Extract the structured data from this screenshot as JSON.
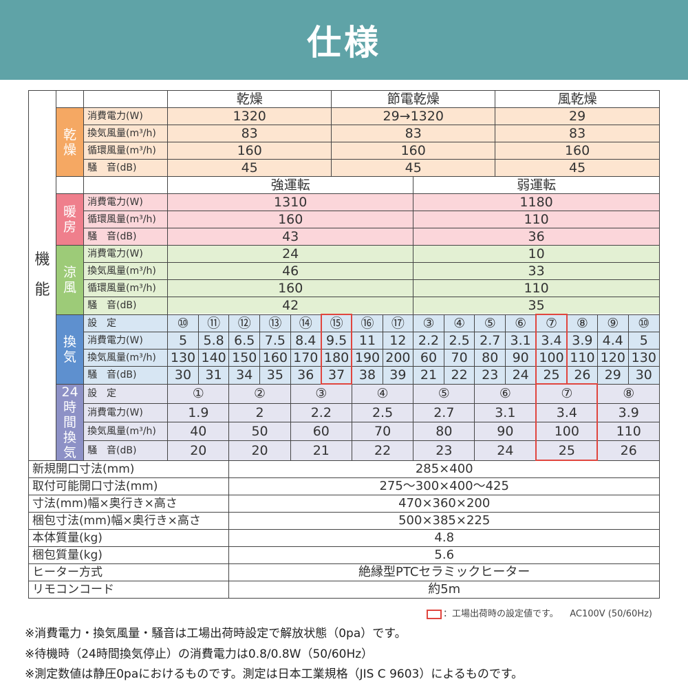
{
  "header": {
    "title": "仕様"
  },
  "table": {
    "function_label": "機能",
    "drying": {
      "category": "乾燥",
      "headers": [
        "乾燥",
        "節電乾燥",
        "風乾燥"
      ],
      "rows": [
        {
          "label": "消費電力(W)",
          "values": [
            "1320",
            "29→1320",
            "29"
          ]
        },
        {
          "label": "換気風量(m³/h)",
          "values": [
            "83",
            "83",
            "83"
          ]
        },
        {
          "label": "循環風量(m³/h)",
          "values": [
            "160",
            "160",
            "160"
          ]
        },
        {
          "label": "騒　音(dB)",
          "values": [
            "45",
            "45",
            "45"
          ]
        }
      ]
    },
    "mode_headers": [
      "強運転",
      "弱運転"
    ],
    "heating": {
      "category": "暖房",
      "rows": [
        {
          "label": "消費電力(W)",
          "values": [
            "1310",
            "1180"
          ]
        },
        {
          "label": "循環風量(m³/h)",
          "values": [
            "160",
            "110"
          ]
        },
        {
          "label": "騒　音(dB)",
          "values": [
            "43",
            "36"
          ]
        }
      ]
    },
    "cooling": {
      "category": "涼風",
      "rows": [
        {
          "label": "消費電力(W)",
          "values": [
            "24",
            "10"
          ]
        },
        {
          "label": "換気風量(m³/h)",
          "values": [
            "46",
            "33"
          ]
        },
        {
          "label": "循環風量(m³/h)",
          "values": [
            "160",
            "110"
          ]
        },
        {
          "label": "騒　音(dB)",
          "values": [
            "42",
            "35"
          ]
        }
      ]
    },
    "ventilation": {
      "category": "換気",
      "highlight_columns": [
        5,
        12
      ],
      "rows": [
        {
          "label": "設　定",
          "values": [
            "⑩",
            "⑪",
            "⑫",
            "⑬",
            "⑭",
            "⑮",
            "⑯",
            "⑰",
            "③",
            "④",
            "⑤",
            "⑥",
            "⑦",
            "⑧",
            "⑨",
            "⑩"
          ]
        },
        {
          "label": "消費電力(W)",
          "values": [
            "5",
            "5.8",
            "6.5",
            "7.5",
            "8.4",
            "9.5",
            "11",
            "12",
            "2.2",
            "2.5",
            "2.7",
            "3.1",
            "3.4",
            "3.9",
            "4.4",
            "5"
          ]
        },
        {
          "label": "換気風量(m³/h)",
          "values": [
            "130",
            "140",
            "150",
            "160",
            "170",
            "180",
            "190",
            "200",
            "60",
            "70",
            "80",
            "90",
            "100",
            "110",
            "120",
            "130"
          ]
        },
        {
          "label": "騒　音(dB)",
          "values": [
            "30",
            "31",
            "34",
            "35",
            "36",
            "37",
            "38",
            "39",
            "21",
            "22",
            "23",
            "24",
            "25",
            "26",
            "29",
            "30"
          ]
        }
      ]
    },
    "ventilation_24h": {
      "category": "24時間換気",
      "highlight_columns": [
        6
      ],
      "rows": [
        {
          "label": "設　定",
          "values": [
            "①",
            "②",
            "③",
            "④",
            "⑤",
            "⑥",
            "⑦",
            "⑧"
          ]
        },
        {
          "label": "消費電力(W)",
          "values": [
            "1.9",
            "2",
            "2.2",
            "2.5",
            "2.7",
            "3.1",
            "3.4",
            "3.9"
          ]
        },
        {
          "label": "換気風量(m³/h)",
          "values": [
            "40",
            "50",
            "60",
            "70",
            "80",
            "90",
            "100",
            "110"
          ]
        },
        {
          "label": "騒　音(dB)",
          "values": [
            "20",
            "20",
            "21",
            "22",
            "23",
            "24",
            "25",
            "26"
          ]
        }
      ]
    },
    "specs": [
      {
        "label": "新規開口寸法(mm)",
        "value": "285×400"
      },
      {
        "label": "取付可能開口寸法(mm)",
        "value": "275〜300×400〜425"
      },
      {
        "label": "寸法(mm)幅×奥行き×高さ",
        "value": "470×360×200"
      },
      {
        "label": "梱包寸法(mm)幅×奥行き×高さ",
        "value": "500×385×225"
      },
      {
        "label": "本体質量(kg)",
        "value": "4.8"
      },
      {
        "label": "梱包質量(kg)",
        "value": "5.6"
      },
      {
        "label": "ヒーター方式",
        "value": "絶縁型PTCセラミックヒーター"
      },
      {
        "label": "リモコンコード",
        "value": "約5m"
      }
    ]
  },
  "legend": {
    "text": "：工場出荷時の設定値です。",
    "power": "AC100V (50/60Hz)",
    "highlight_color": "#e0453e"
  },
  "notes": [
    "※消費電力・換気風量・騒音は工場出荷時設定で解放状態（0pa）です。",
    "※待機時（24時間換気停止）の消費電力は0.8/0.8W（50/60Hz）",
    "※測定数値は静圧0paにおけるものです。測定は日本工業規格（JIS C 9603）によるものです。"
  ]
}
